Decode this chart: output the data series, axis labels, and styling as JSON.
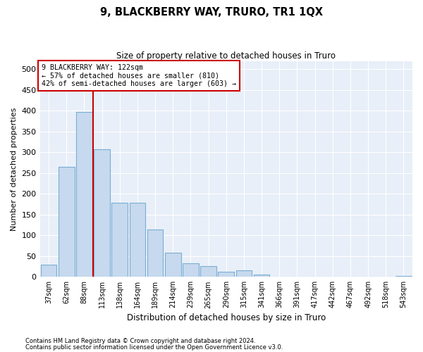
{
  "title": "9, BLACKBERRY WAY, TRURO, TR1 1QX",
  "subtitle": "Size of property relative to detached houses in Truro",
  "xlabel": "Distribution of detached houses by size in Truro",
  "ylabel": "Number of detached properties",
  "bar_color": "#c6d9ee",
  "bar_edge_color": "#7aadd4",
  "bg_color": "#e8eff8",
  "grid_color": "#ffffff",
  "categories": [
    "37sqm",
    "62sqm",
    "88sqm",
    "113sqm",
    "138sqm",
    "164sqm",
    "189sqm",
    "214sqm",
    "239sqm",
    "265sqm",
    "290sqm",
    "315sqm",
    "341sqm",
    "366sqm",
    "391sqm",
    "417sqm",
    "442sqm",
    "467sqm",
    "492sqm",
    "518sqm",
    "543sqm"
  ],
  "values": [
    30,
    265,
    397,
    308,
    179,
    179,
    114,
    59,
    32,
    26,
    13,
    15,
    5,
    1,
    1,
    0,
    0,
    0,
    0,
    0,
    2
  ],
  "ylim": [
    0,
    520
  ],
  "yticks": [
    0,
    50,
    100,
    150,
    200,
    250,
    300,
    350,
    400,
    450,
    500
  ],
  "vline_x_index": 2.5,
  "property_line_label": "9 BLACKBERRY WAY: 122sqm",
  "annotation_line1": "← 57% of detached houses are smaller (810)",
  "annotation_line2": "42% of semi-detached houses are larger (603) →",
  "annotation_box_color": "#ffffff",
  "annotation_box_edge": "#cc0000",
  "vline_color": "#cc0000",
  "footer1": "Contains HM Land Registry data © Crown copyright and database right 2024.",
  "footer2": "Contains public sector information licensed under the Open Government Licence v3.0."
}
